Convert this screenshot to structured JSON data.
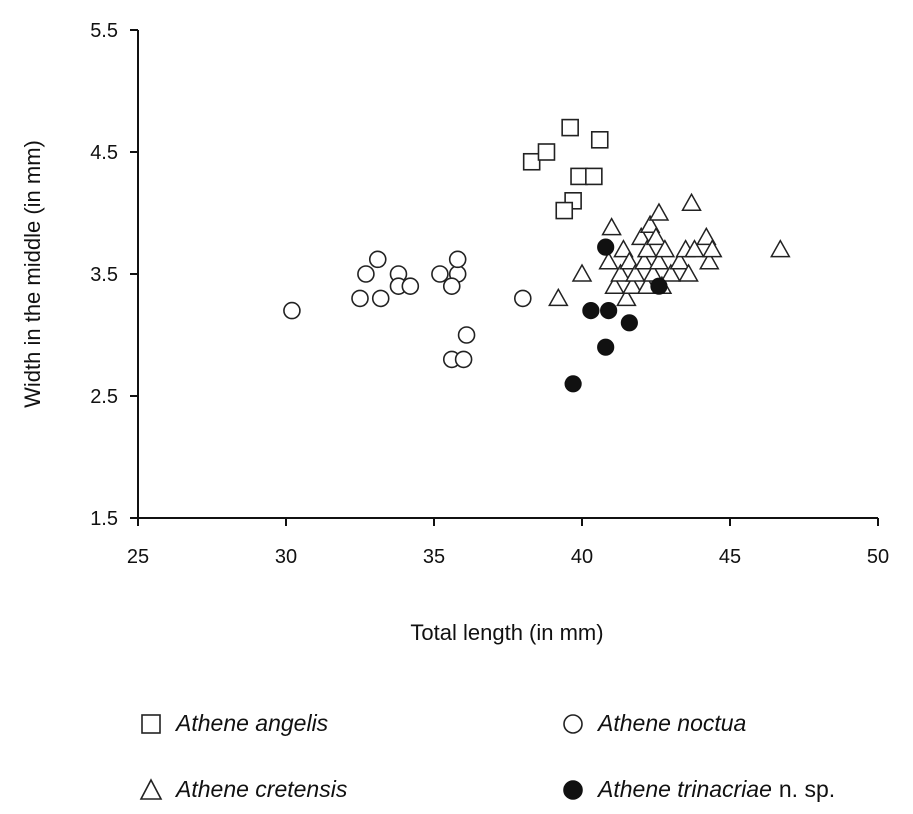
{
  "chart_data": {
    "type": "scatter",
    "xlabel": "Total length (in mm)",
    "ylabel": "Width in the middle (in mm)",
    "xlim": [
      25,
      50
    ],
    "ylim": [
      1.5,
      5.5
    ],
    "xticks": [
      "25",
      "30",
      "35",
      "40",
      "45",
      "50"
    ],
    "yticks": [
      "1.5",
      "2.5",
      "3.5",
      "4.5",
      "5.5"
    ],
    "grid": false,
    "legend_position": "bottom",
    "series": [
      {
        "name": "Athene angelis",
        "marker": "square",
        "points": [
          [
            38.3,
            4.42
          ],
          [
            38.8,
            4.5
          ],
          [
            39.6,
            4.7
          ],
          [
            40.6,
            4.6
          ],
          [
            39.9,
            4.3
          ],
          [
            40.4,
            4.3
          ],
          [
            39.7,
            4.1
          ],
          [
            39.4,
            4.02
          ]
        ]
      },
      {
        "name": "Athene noctua",
        "marker": "circle",
        "points": [
          [
            30.2,
            3.2
          ],
          [
            32.5,
            3.3
          ],
          [
            33.2,
            3.3
          ],
          [
            32.7,
            3.5
          ],
          [
            33.1,
            3.62
          ],
          [
            33.8,
            3.5
          ],
          [
            33.8,
            3.4
          ],
          [
            34.2,
            3.4
          ],
          [
            35.2,
            3.5
          ],
          [
            35.8,
            3.5
          ],
          [
            35.8,
            3.62
          ],
          [
            35.6,
            3.4
          ],
          [
            36.1,
            3.0
          ],
          [
            35.6,
            2.8
          ],
          [
            36.0,
            2.8
          ],
          [
            38.0,
            3.3
          ]
        ]
      },
      {
        "name": "Athene cretensis",
        "marker": "triangle",
        "points": [
          [
            39.2,
            3.3
          ],
          [
            40.0,
            3.5
          ],
          [
            41.0,
            3.88
          ],
          [
            40.9,
            3.6
          ],
          [
            41.1,
            3.4
          ],
          [
            41.3,
            3.5
          ],
          [
            41.4,
            3.7
          ],
          [
            41.5,
            3.3
          ],
          [
            41.6,
            3.6
          ],
          [
            41.7,
            3.4
          ],
          [
            41.8,
            3.5
          ],
          [
            42.0,
            3.8
          ],
          [
            42.1,
            3.6
          ],
          [
            42.2,
            3.7
          ],
          [
            42.2,
            3.4
          ],
          [
            42.3,
            3.9
          ],
          [
            42.4,
            3.5
          ],
          [
            42.5,
            3.8
          ],
          [
            42.6,
            4.0
          ],
          [
            42.6,
            3.6
          ],
          [
            42.7,
            3.4
          ],
          [
            42.8,
            3.7
          ],
          [
            43.0,
            3.5
          ],
          [
            43.3,
            3.6
          ],
          [
            43.5,
            3.7
          ],
          [
            43.6,
            3.5
          ],
          [
            43.8,
            3.7
          ],
          [
            43.7,
            4.08
          ],
          [
            44.2,
            3.8
          ],
          [
            44.3,
            3.6
          ],
          [
            44.4,
            3.7
          ],
          [
            46.7,
            3.7
          ]
        ]
      },
      {
        "name": "Athene trinacriae",
        "name_suffix": "n. sp.",
        "marker": "filled-circle",
        "points": [
          [
            40.8,
            3.72
          ],
          [
            40.3,
            3.2
          ],
          [
            40.9,
            3.2
          ],
          [
            41.6,
            3.1
          ],
          [
            42.6,
            3.4
          ],
          [
            40.8,
            2.9
          ],
          [
            39.7,
            2.6
          ]
        ]
      }
    ]
  }
}
